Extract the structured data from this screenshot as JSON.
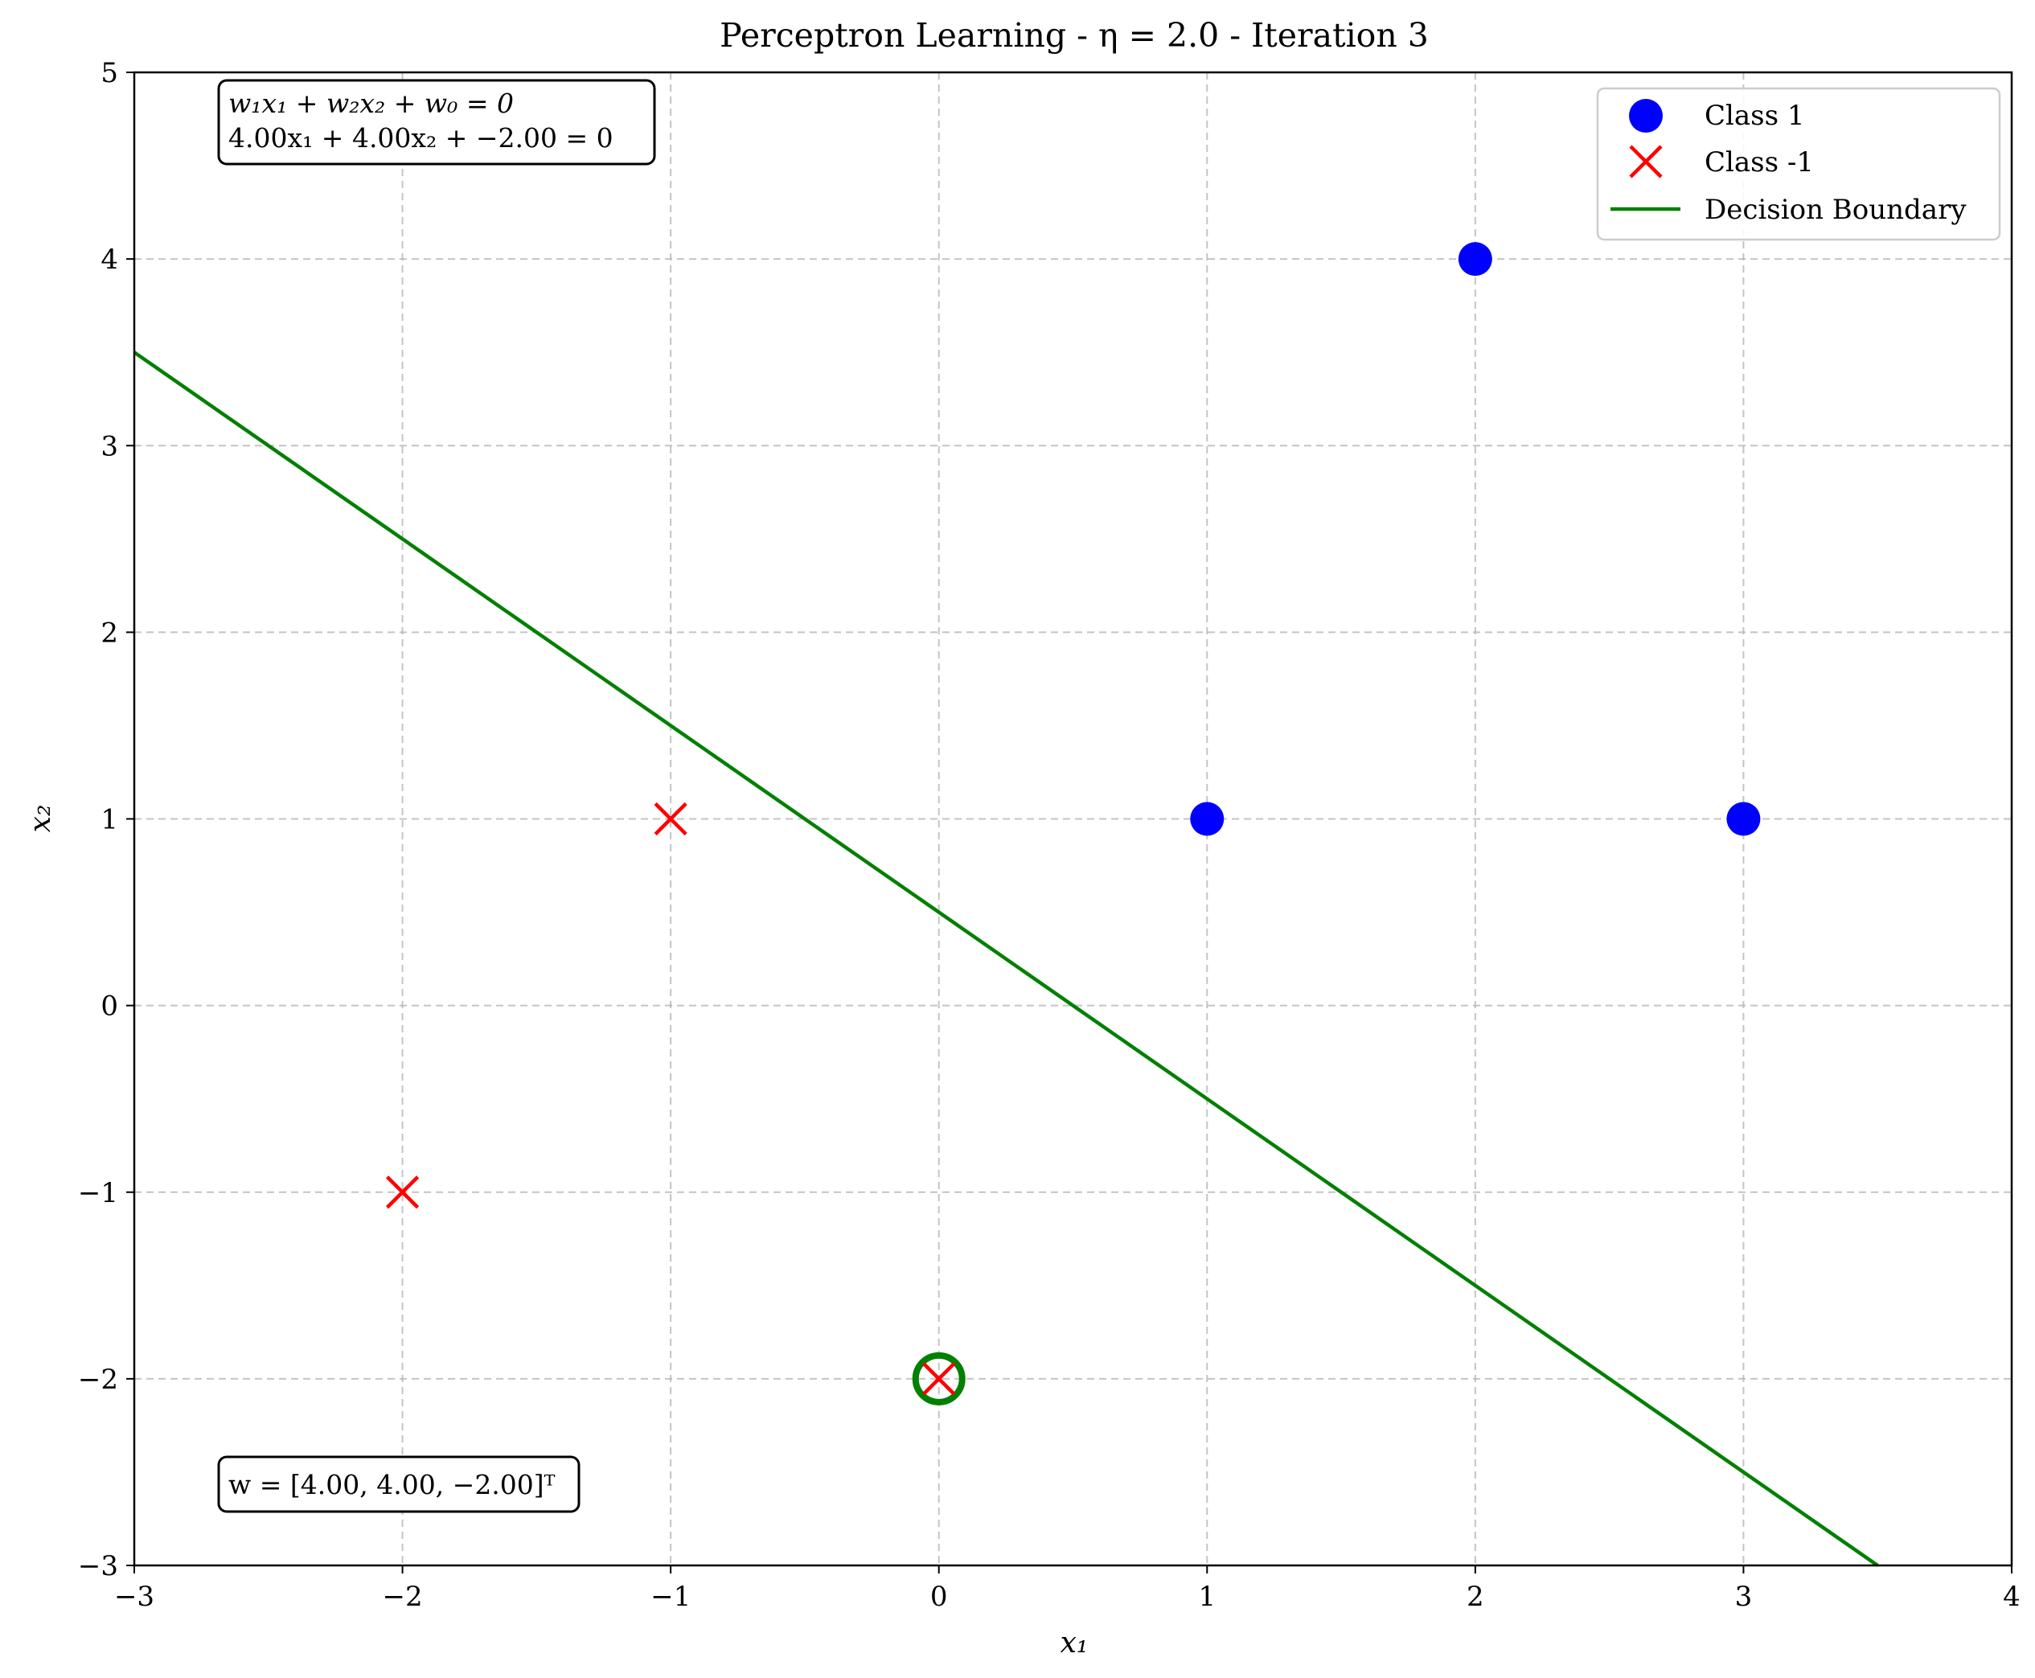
{
  "chart_data": {
    "type": "scatter",
    "title": "Perceptron Learning - η = 2.0 - Iteration 3",
    "xlabel": "x₁",
    "ylabel": "x₂",
    "xlim": [
      -3,
      4
    ],
    "ylim": [
      -3,
      5
    ],
    "xticks": [
      -3,
      -2,
      -1,
      0,
      1,
      2,
      3,
      4
    ],
    "yticks": [
      -3,
      -2,
      -1,
      0,
      1,
      2,
      3,
      4,
      5
    ],
    "xtick_labels": [
      "−3",
      "−2",
      "−1",
      "0",
      "1",
      "2",
      "3",
      "4"
    ],
    "ytick_labels": [
      "−3",
      "−2",
      "−1",
      "0",
      "1",
      "2",
      "3",
      "4",
      "5"
    ],
    "grid": true,
    "legend_position": "top-right",
    "series": [
      {
        "name": "Class 1",
        "marker": "circle",
        "color": "#0000ff",
        "points": [
          [
            1,
            1
          ],
          [
            2,
            4
          ],
          [
            3,
            1
          ]
        ]
      },
      {
        "name": "Class -1",
        "marker": "x",
        "color": "#ff0000",
        "points": [
          [
            -1,
            1
          ],
          [
            -2,
            -1
          ],
          [
            0,
            -2
          ]
        ]
      }
    ],
    "decision_boundary": {
      "name": "Decision Boundary",
      "color": "#008000",
      "w1": 4.0,
      "w2": 4.0,
      "w0": -2.0
    },
    "highlighted_point": {
      "x": 0,
      "y": -2,
      "color": "#008000"
    },
    "annotations": {
      "equation_general": "w₁x₁ + w₂x₂ + w₀ = 0",
      "equation_specific": "4.00x₁ + 4.00x₂ + −2.00 = 0",
      "weights_vector": "w = [4.00, 4.00, −2.00]ᵀ"
    }
  }
}
